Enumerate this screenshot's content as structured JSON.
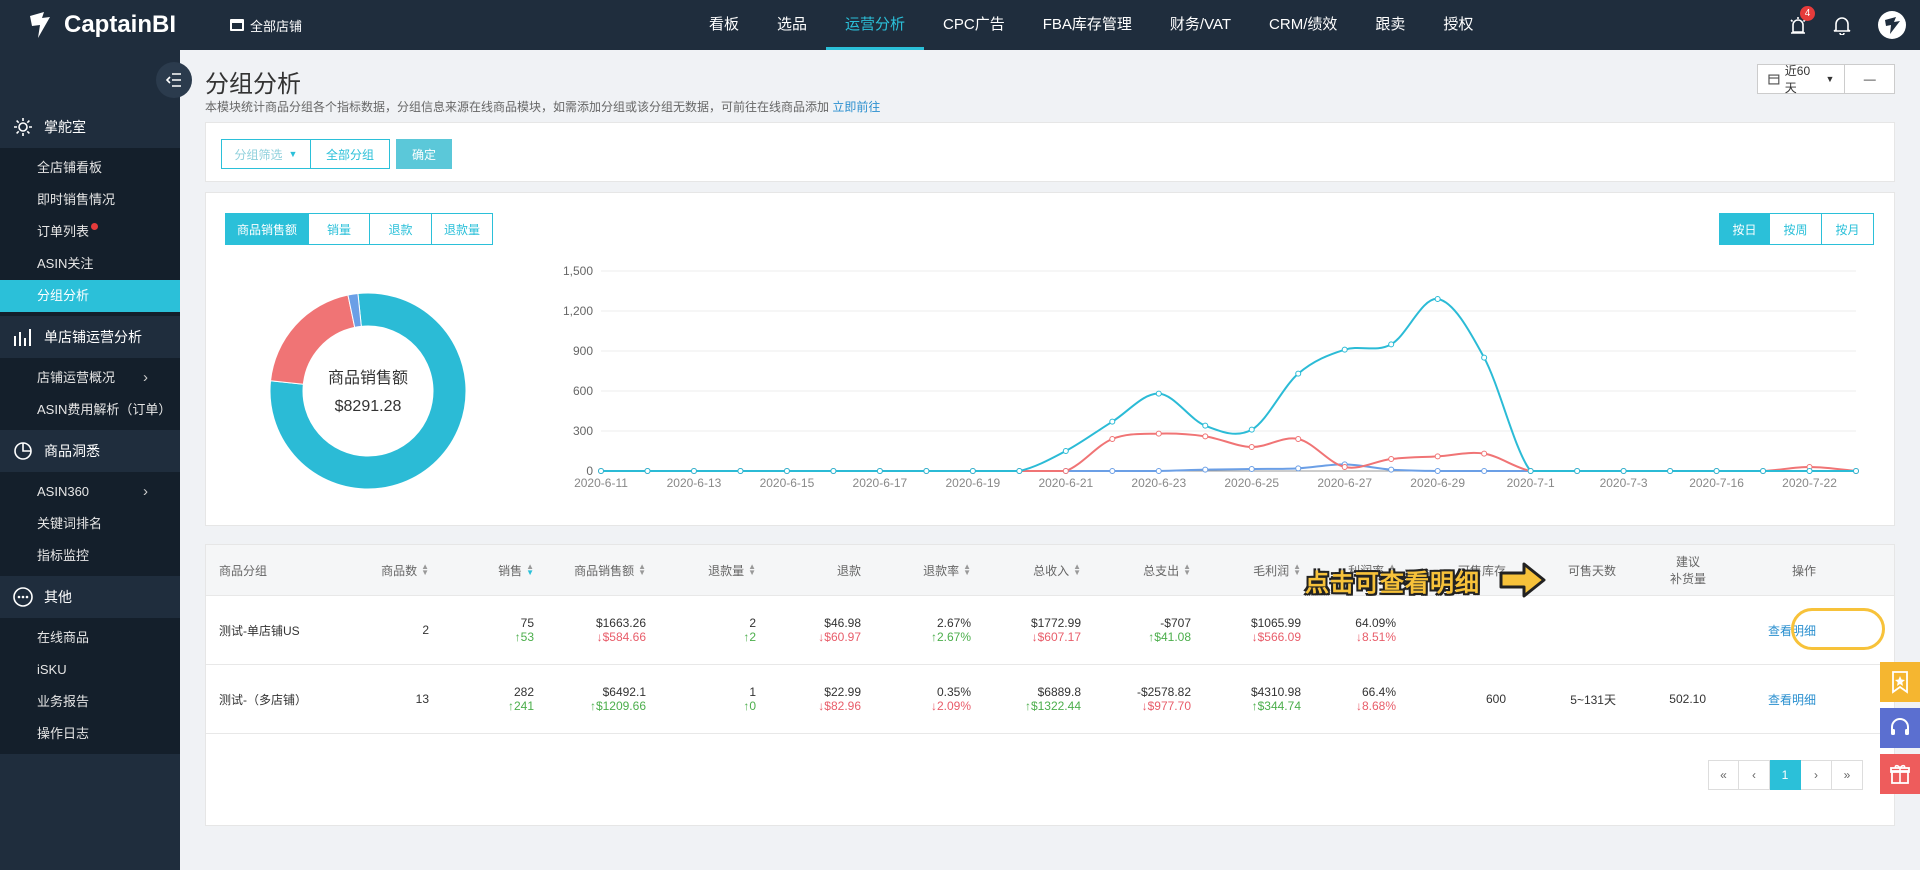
{
  "app": {
    "name": "CaptainBI"
  },
  "topbar": {
    "store_selector": "全部店铺",
    "nav": [
      "看板",
      "选品",
      "运营分析",
      "CPC广告",
      "FBA库存管理",
      "财务/VAT",
      "CRM/绩效",
      "跟卖",
      "授权"
    ],
    "active_nav": "运营分析",
    "notification_badge": "4"
  },
  "sidebar": {
    "sections": [
      {
        "title": "掌舵室",
        "icon": "gear-icon",
        "items": [
          {
            "label": "全店铺看板"
          },
          {
            "label": "即时销售情况"
          },
          {
            "label": "订单列表",
            "dot": true
          },
          {
            "label": "ASIN关注"
          },
          {
            "label": "分组分析",
            "active": true
          }
        ]
      },
      {
        "title": "单店铺运营分析",
        "icon": "bar-chart-icon",
        "items": [
          {
            "label": "店铺运营概况",
            "arrow": true
          },
          {
            "label": "ASIN费用解析（订单）"
          }
        ]
      },
      {
        "title": "商品洞悉",
        "icon": "pie-chart-icon",
        "items": [
          {
            "label": "ASIN360",
            "arrow": true
          },
          {
            "label": "关键词排名"
          },
          {
            "label": "指标监控"
          }
        ]
      },
      {
        "title": "其他",
        "icon": "more-icon",
        "items": [
          {
            "label": "在线商品"
          },
          {
            "label": "iSKU"
          },
          {
            "label": "业务报告"
          },
          {
            "label": "操作日志"
          }
        ]
      }
    ]
  },
  "page": {
    "title": "分组分析",
    "description": "本模块统计商品分组各个指标数据，分组信息来源在线商品模块，如需添加分组或该分组无数据，可前往在线商品添加",
    "description_link": "立即前往",
    "date_range": "近60天",
    "date_extra": "—"
  },
  "filter": {
    "group_filter": "分组筛选",
    "all_groups": "全部分组",
    "confirm": "确定"
  },
  "metric_tabs": [
    "商品销售额",
    "销量",
    "退款",
    "退款量"
  ],
  "active_metric": "商品销售额",
  "period_tabs": [
    "按日",
    "按周",
    "按月"
  ],
  "active_period": "按日",
  "donut": {
    "label": "商品销售额",
    "value": "$8291.28",
    "slices": [
      {
        "name": "测试-（多店铺）",
        "value": 6492.1,
        "color": "#2bbbd6"
      },
      {
        "name": "测试-单店铺US",
        "value": 1663.26,
        "color": "#f07475"
      },
      {
        "name": "other",
        "value": 135.92,
        "color": "#6b9fe6"
      }
    ]
  },
  "chart_data": {
    "type": "line",
    "x": [
      "2020-6-11",
      "2020-6-12",
      "2020-6-13",
      "2020-6-14",
      "2020-6-15",
      "2020-6-16",
      "2020-6-17",
      "2020-6-18",
      "2020-6-19",
      "2020-6-20",
      "2020-6-21",
      "2020-6-22",
      "2020-6-23",
      "2020-6-24",
      "2020-6-25",
      "2020-6-26",
      "2020-6-27",
      "2020-6-28",
      "2020-6-29",
      "2020-6-30",
      "2020-7-1",
      "2020-7-2",
      "2020-7-3",
      "2020-7-4",
      "2020-7-16",
      "2020-7-17",
      "2020-7-22",
      "2020-7-23"
    ],
    "xticks": [
      "2020-6-11",
      "2020-6-13",
      "2020-6-15",
      "2020-6-17",
      "2020-6-19",
      "2020-6-21",
      "2020-6-23",
      "2020-6-25",
      "2020-6-27",
      "2020-6-29",
      "2020-7-1",
      "2020-7-3",
      "2020-7-16",
      "2020-7-22"
    ],
    "ylim": [
      0,
      1500
    ],
    "yticks": [
      "0",
      "300",
      "600",
      "900",
      "1,200",
      "1,500"
    ],
    "series": [
      {
        "color": "#2bbbd6",
        "values": [
          0,
          0,
          0,
          0,
          0,
          0,
          0,
          0,
          0,
          0,
          150,
          370,
          580,
          340,
          310,
          730,
          910,
          950,
          1290,
          850,
          0,
          0,
          0,
          0,
          0,
          0,
          0,
          0
        ]
      },
      {
        "color": "#f07475",
        "values": [
          0,
          0,
          0,
          0,
          0,
          0,
          0,
          0,
          0,
          0,
          0,
          240,
          280,
          260,
          180,
          240,
          30,
          90,
          110,
          130,
          0,
          0,
          0,
          0,
          0,
          0,
          30,
          0
        ]
      },
      {
        "color": "#6b9fe6",
        "values": [
          0,
          0,
          0,
          0,
          0,
          0,
          0,
          0,
          0,
          0,
          0,
          0,
          0,
          10,
          15,
          20,
          50,
          10,
          0,
          0,
          0,
          0,
          0,
          0,
          0,
          0,
          0,
          0
        ]
      }
    ]
  },
  "table": {
    "headers": [
      "商品分组",
      "商品数",
      "销售",
      "商品销售额",
      "退款量",
      "退款",
      "退款率",
      "总收入",
      "总支出",
      "毛利润",
      "利润率",
      "可售库存",
      "可售天数",
      "建议\n补货量",
      "操作"
    ],
    "rows": [
      {
        "group": "测试-单店铺US",
        "count": "2",
        "sales": "75",
        "sales_d": "↑53",
        "revenue": "$1663.26",
        "revenue_d": "↓$584.66",
        "refund_qty": "2",
        "refund_qty_d": "↑2",
        "refund": "$46.98",
        "refund_d": "↓$60.97",
        "refund_rate": "2.67%",
        "refund_rate_d": "↑2.67%",
        "income": "$1772.99",
        "income_d": "↓$607.17",
        "expense": "-$707",
        "expense_d": "↑$41.08",
        "profit": "$1065.99",
        "profit_d": "↓$566.09",
        "margin": "64.09%",
        "margin_d": "↓8.51%",
        "stock": "",
        "days": "",
        "restock": "",
        "action": "查看明细"
      },
      {
        "group": "测试-（多店铺）",
        "count": "13",
        "sales": "282",
        "sales_d": "↑241",
        "revenue": "$6492.1",
        "revenue_d": "↑$1209.66",
        "refund_qty": "1",
        "refund_qty_d": "↑0",
        "refund": "$22.99",
        "refund_d": "↓$82.96",
        "refund_rate": "0.35%",
        "refund_rate_d": "↓2.09%",
        "income": "$6889.8",
        "income_d": "↑$1322.44",
        "expense": "-$2578.82",
        "expense_d": "↓$977.70",
        "profit": "$4310.98",
        "profit_d": "↑$344.74",
        "margin": "66.4%",
        "margin_d": "↓8.68%",
        "stock": "600",
        "days": "5~131天",
        "restock": "502.10",
        "action": "查看明细"
      }
    ]
  },
  "pager": {
    "first": "«",
    "prev": "‹",
    "current": "1",
    "next": "›",
    "last": "»"
  },
  "annotation": {
    "text": "点击可查看明细"
  },
  "colors": {
    "accent": "#2bc0d9",
    "nav_bg": "#1f2d3d",
    "up": "#4cae4c",
    "down": "#e85d6a",
    "highlight": "#f7c23a"
  }
}
